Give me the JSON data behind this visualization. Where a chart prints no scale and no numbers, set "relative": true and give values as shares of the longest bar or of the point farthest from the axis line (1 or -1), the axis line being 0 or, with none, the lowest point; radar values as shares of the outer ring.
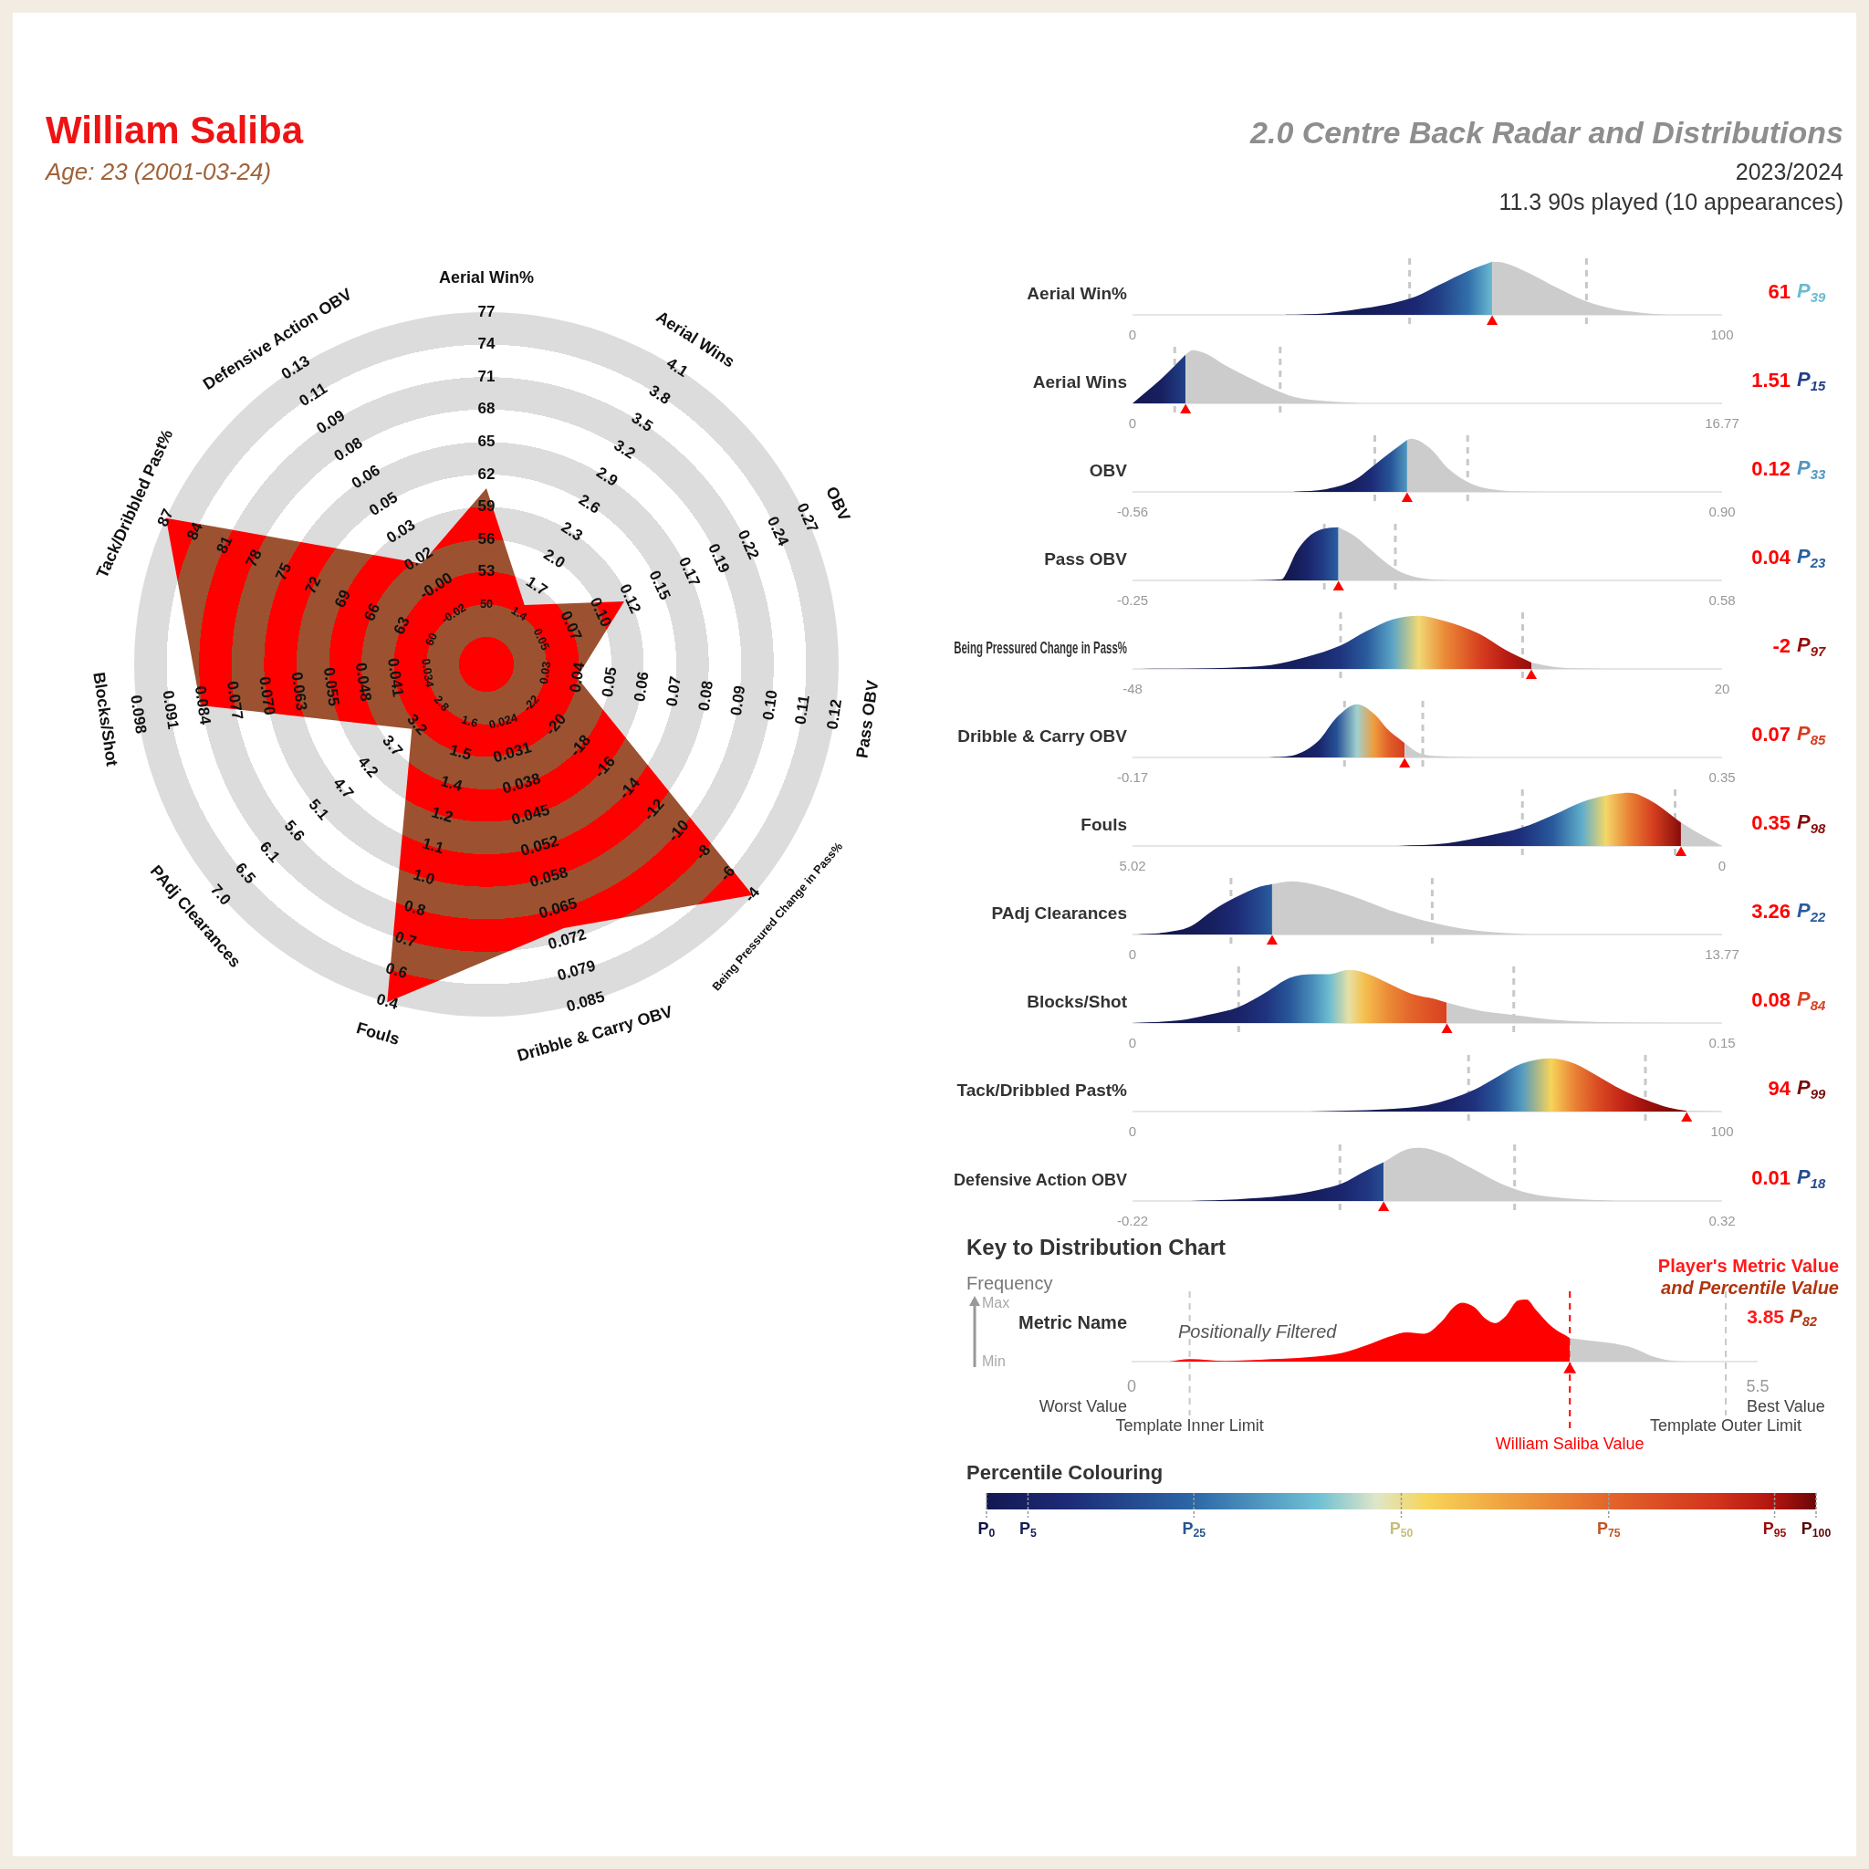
{
  "chart_data": [
    {
      "type": "radar",
      "title": "William Saliba",
      "subtitle": "Age: 23 (2001-03-24)",
      "relative": true,
      "grid": true,
      "categories": [
        "Aerial Win%",
        "Aerial Wins",
        "OBV",
        "Pass OBV",
        "Being Pressured Change in Pass%",
        "Dribble & Carry OBV",
        "Fouls",
        "PAdj Clearances",
        "Blocks/Shot",
        "Tack/Dribbled Past%",
        "Defensive Action OBV"
      ],
      "series": [
        {
          "color": "#ff0000",
          "values": [
            0.5,
            0.2,
            0.43,
            0.26,
            1,
            0.78,
            1,
            0.28,
            0.82,
            1,
            0.34
          ]
        }
      ],
      "annotations": [
        "50",
        "53",
        "56",
        "59",
        "62",
        "65",
        "68",
        "71",
        "74",
        "77",
        "1.4",
        "1.7",
        "2.0",
        "2.3",
        "2.6",
        "2.9",
        "3.2",
        "3.5",
        "3.8",
        "4.1",
        "0.05",
        "0.07",
        "0.10",
        "0.12",
        "0.15",
        "0.17",
        "0.19",
        "0.22",
        "0.24",
        "0.27",
        "0.03",
        "0.04",
        "0.05",
        "0.06",
        "0.07",
        "0.08",
        "0.09",
        "0.10",
        "0.11",
        "0.12",
        "-22",
        "-20",
        "-18",
        "-16",
        "-14",
        "-12",
        "-10",
        "-8",
        "-6",
        "-4",
        "0.024",
        "0.031",
        "0.038",
        "0.045",
        "0.052",
        "0.058",
        "0.065",
        "0.072",
        "0.079",
        "0.085",
        "1.6",
        "1.5",
        "1.4",
        "1.2",
        "1.1",
        "1.0",
        "0.8",
        "0.7",
        "0.6",
        "0.4",
        "2.8",
        "3.2",
        "3.7",
        "4.2",
        "4.7",
        "5.1",
        "5.6",
        "6.1",
        "6.5",
        "7.0",
        "0.034",
        "0.041",
        "0.048",
        "0.055",
        "0.063",
        "0.070",
        "0.077",
        "0.084",
        "0.091",
        "0.098",
        "60",
        "63",
        "66",
        "69",
        "72",
        "75",
        "78",
        "81",
        "84",
        "87",
        "-0.02",
        "-0.00",
        "0.02",
        "0.03",
        "0.05",
        "0.06",
        "0.08",
        "0.09",
        "0.11",
        "0.13"
      ]
    },
    {
      "type": "other",
      "title": "2.0 Centre Back Radar and Distributions",
      "annotations": [
        "2023/2024",
        "11.3 90s played (10 appearances)"
      ]
    },
    {
      "type": "area",
      "relative": true,
      "title": "Aerial Win%",
      "xlim": [
        0,
        100
      ],
      "xticks": [
        0,
        100
      ],
      "series": [
        {
          "color": "#6abad1",
          "x": [
            26,
            33,
            38,
            43,
            48,
            52,
            57,
            61
          ],
          "values": [
            0,
            0.03,
            0.1,
            0.19,
            0.34,
            0.56,
            0.83,
            1
          ]
        },
        {
          "color": "#cccccc",
          "x": [
            61,
            63,
            67,
            72,
            77,
            82,
            87,
            91
          ],
          "values": [
            1,
            0.98,
            0.8,
            0.51,
            0.25,
            0.1,
            0.03,
            0
          ]
        },
        {
          "type": "scatter",
          "color": "#ff0000",
          "marker": "triangle",
          "x": [
            61
          ],
          "values": [
            -0.13
          ]
        }
      ],
      "ref_lines": [
        {
          "axis": "x",
          "value": 47,
          "color": "#c8c8c8",
          "line_style": "dashed"
        },
        {
          "axis": "x",
          "value": 77,
          "color": "#c8c8c8",
          "line_style": "dashed"
        }
      ],
      "annotations": [
        "61",
        "P$_{39}$"
      ]
    },
    {
      "type": "area",
      "relative": true,
      "title": "Aerial Wins",
      "xlim": [
        0,
        16.77
      ],
      "xticks": [
        0,
        16.77
      ],
      "series": [
        {
          "color": "#223f88",
          "x": [
            0,
            0.8,
            1.51
          ],
          "values": [
            0,
            0.45,
            0.92
          ]
        },
        {
          "color": "#cccccc",
          "x": [
            1.51,
            1.7,
            2.1,
            2.6,
            3.3,
            4,
            4.6,
            5.5,
            6.5
          ],
          "values": [
            0.92,
            1,
            0.93,
            0.73,
            0.49,
            0.27,
            0.12,
            0.04,
            0
          ]
        },
        {
          "type": "scatter",
          "color": "#ff0000",
          "marker": "triangle",
          "x": [
            1.51
          ],
          "values": [
            -0.13
          ]
        }
      ],
      "ref_lines": [
        {
          "axis": "x",
          "value": 1.2,
          "color": "#c8c8c8",
          "line_style": "dashed"
        },
        {
          "axis": "x",
          "value": 4.2,
          "color": "#c8c8c8",
          "line_style": "dashed"
        }
      ],
      "annotations": [
        "1.51",
        "P$_{15}$"
      ]
    },
    {
      "type": "area",
      "relative": true,
      "title": "OBV",
      "xlim": [
        -0.56,
        0.9
      ],
      "xticks": [
        -0.56,
        {
          "value": 0.9,
          "label": "0.90"
        }
      ],
      "series": [
        {
          "color": "#5097bf",
          "x": [
            -0.16,
            -0.08,
            -0.01,
            0.03,
            0.08,
            0.12
          ],
          "values": [
            0,
            0.05,
            0.22,
            0.45,
            0.75,
            0.98
          ]
        },
        {
          "color": "#cccccc",
          "x": [
            0.12,
            0.13,
            0.18,
            0.22,
            0.28,
            0.35,
            0.45
          ],
          "values": [
            0.98,
            1,
            0.8,
            0.45,
            0.15,
            0.03,
            0
          ]
        },
        {
          "type": "scatter",
          "color": "#ff0000",
          "marker": "triangle",
          "x": [
            0.12
          ],
          "values": [
            -0.13
          ]
        }
      ],
      "ref_lines": [
        {
          "axis": "x",
          "value": 0.04,
          "color": "#c8c8c8",
          "line_style": "dashed"
        },
        {
          "axis": "x",
          "value": 0.27,
          "color": "#c8c8c8",
          "line_style": "dashed"
        }
      ],
      "annotations": [
        "0.12",
        "P$_{33}$"
      ]
    },
    {
      "type": "area",
      "relative": true,
      "title": "Pass OBV",
      "xlim": [
        -0.25,
        0.58
      ],
      "xticks": [
        -0.25,
        0.58
      ],
      "series": [
        {
          "color": "#2a60a1",
          "x": [
            -0.1,
            -0.04,
            -0.033,
            -0.02,
            -0.004,
            0.016,
            0.04
          ],
          "values": [
            0,
            0.02,
            0.15,
            0.52,
            0.8,
            0.96,
            1
          ]
        },
        {
          "color": "#cccccc",
          "x": [
            0.04,
            0.062,
            0.086,
            0.111,
            0.136,
            0.169,
            0.2
          ],
          "values": [
            1,
            0.84,
            0.57,
            0.29,
            0.11,
            0.02,
            0
          ]
        },
        {
          "type": "scatter",
          "color": "#ff0000",
          "marker": "triangle",
          "x": [
            0.04
          ],
          "values": [
            -0.13
          ]
        }
      ],
      "ref_lines": [
        {
          "axis": "x",
          "value": 0.02,
          "color": "#c8c8c8",
          "line_style": "dashed"
        },
        {
          "axis": "x",
          "value": 0.12,
          "color": "#c8c8c8",
          "line_style": "dashed"
        }
      ],
      "annotations": [
        "0.04",
        "P$_{23}$"
      ]
    },
    {
      "type": "area",
      "relative": true,
      "title": "Being Pressured Change in Pass%",
      "xlim": [
        -48,
        20
      ],
      "xticks": [
        -48,
        20
      ],
      "series": [
        {
          "color": "#940f0c",
          "x": [
            -47,
            -37,
            -32,
            -28,
            -24,
            -21,
            -18,
            -15,
            -12,
            -8,
            -5,
            -2
          ],
          "values": [
            0,
            0.02,
            0.07,
            0.22,
            0.44,
            0.71,
            0.93,
            1,
            0.9,
            0.66,
            0.36,
            0.12
          ]
        },
        {
          "color": "#cccccc",
          "x": [
            -2,
            1,
            7
          ],
          "values": [
            0.12,
            0.03,
            0
          ]
        },
        {
          "type": "scatter",
          "color": "#ff0000",
          "marker": "triangle",
          "x": [
            -2
          ],
          "values": [
            -0.13
          ]
        }
      ],
      "ref_lines": [
        {
          "axis": "x",
          "value": -24,
          "color": "#c8c8c8",
          "line_style": "dashed"
        },
        {
          "axis": "x",
          "value": -3,
          "color": "#c8c8c8",
          "line_style": "dashed"
        }
      ],
      "annotations": [
        "-2",
        "P$_{97}$"
      ]
    },
    {
      "type": "area",
      "relative": true,
      "title": "Dribble & Carry OBV",
      "xlim": [
        -0.17,
        0.35
      ],
      "xticks": [
        -0.17,
        0.35
      ],
      "series": [
        {
          "color": "#d63e1f",
          "x": [
            -0.05,
            -0.026,
            -0.006,
            0.01,
            0.028,
            0.043,
            0.056,
            0.07
          ],
          "values": [
            0,
            0.05,
            0.31,
            0.75,
            1,
            0.82,
            0.51,
            0.27
          ]
        },
        {
          "color": "#cccccc",
          "x": [
            0.07,
            0.082,
            0.103,
            0.134
          ],
          "values": [
            0.27,
            0.09,
            0.02,
            0
          ]
        },
        {
          "type": "scatter",
          "color": "#ff0000",
          "marker": "triangle",
          "x": [
            0.07
          ],
          "values": [
            -0.13
          ]
        }
      ],
      "ref_lines": [
        {
          "axis": "x",
          "value": 0.017,
          "color": "#c8c8c8",
          "line_style": "dashed"
        },
        {
          "axis": "x",
          "value": 0.086,
          "color": "#c8c8c8",
          "line_style": "dashed"
        }
      ],
      "annotations": [
        "0.07",
        "P$_{85}$"
      ]
    },
    {
      "type": "area",
      "relative": true,
      "title": "Fouls",
      "xlim": [
        5.02,
        0
      ],
      "xticks": [
        5.02,
        0
      ],
      "series": [
        {
          "color": "#870c0a",
          "x": [
            2.76,
            2.34,
            1.99,
            1.71,
            1.44,
            1.19,
            0.99,
            0.79,
            0.59,
            0.35
          ],
          "values": [
            0,
            0.05,
            0.19,
            0.34,
            0.58,
            0.83,
            0.95,
            1,
            0.83,
            0.44
          ]
        },
        {
          "color": "#cccccc",
          "x": [
            0.35,
            0.2,
            0
          ],
          "values": [
            0.44,
            0.24,
            0
          ]
        },
        {
          "type": "scatter",
          "color": "#ff0000",
          "marker": "triangle",
          "x": [
            0.35
          ],
          "values": [
            -0.13
          ]
        }
      ],
      "ref_lines": [
        {
          "axis": "x",
          "value": 1.7,
          "color": "#c8c8c8",
          "line_style": "dashed"
        },
        {
          "axis": "x",
          "value": 0.4,
          "color": "#c8c8c8",
          "line_style": "dashed"
        }
      ],
      "annotations": [
        "0.35",
        "P$_{98}$"
      ]
    },
    {
      "type": "area",
      "relative": true,
      "title": "PAdj Clearances",
      "xlim": [
        0,
        13.77
      ],
      "xticks": [
        0,
        13.77
      ],
      "series": [
        {
          "color": "#295c9e",
          "x": [
            0.1,
            0.8,
            1.35,
            1.89,
            2.44,
            2.98,
            3.26
          ],
          "values": [
            0,
            0.04,
            0.15,
            0.46,
            0.71,
            0.9,
            0.95
          ]
        },
        {
          "color": "#cccccc",
          "x": [
            3.26,
            3.74,
            4.35,
            5.17,
            5.99,
            6.81,
            7.63,
            8.45,
            9.27
          ],
          "values": [
            0.95,
            1,
            0.92,
            0.71,
            0.46,
            0.26,
            0.12,
            0.04,
            0
          ]
        },
        {
          "type": "scatter",
          "color": "#ff0000",
          "marker": "triangle",
          "x": [
            3.26
          ],
          "values": [
            -0.13
          ]
        }
      ],
      "ref_lines": [
        {
          "axis": "x",
          "value": 2.3,
          "color": "#c8c8c8",
          "line_style": "dashed"
        },
        {
          "axis": "x",
          "value": 7,
          "color": "#c8c8c8",
          "line_style": "dashed"
        }
      ],
      "annotations": [
        "3.26",
        "P$_{22}$"
      ]
    },
    {
      "type": "area",
      "relative": true,
      "title": "Blocks/Shot",
      "xlim": [
        0,
        0.15
      ],
      "xticks": [
        0,
        0.15
      ],
      "series": [
        {
          "color": "#d74221",
          "x": [
            0,
            0.012,
            0.019,
            0.027,
            0.034,
            0.04,
            0.046,
            0.05,
            0.055,
            0.059,
            0.065,
            0.071,
            0.077,
            0.08
          ],
          "values": [
            0,
            0.05,
            0.15,
            0.3,
            0.58,
            0.85,
            0.92,
            0.92,
            1,
            0.95,
            0.75,
            0.55,
            0.45,
            0.38
          ]
        },
        {
          "color": "#cccccc",
          "x": [
            0.08,
            0.089,
            0.097,
            0.109,
            0.123,
            0.141
          ],
          "values": [
            0.38,
            0.22,
            0.15,
            0.05,
            0.01,
            0
          ]
        },
        {
          "type": "scatter",
          "color": "#ff0000",
          "marker": "triangle",
          "x": [
            0.08
          ],
          "values": [
            -0.13
          ]
        }
      ],
      "ref_lines": [
        {
          "axis": "x",
          "value": 0.027,
          "color": "#c8c8c8",
          "line_style": "dashed"
        },
        {
          "axis": "x",
          "value": 0.097,
          "color": "#c8c8c8",
          "line_style": "dashed"
        }
      ],
      "annotations": [
        "0.08",
        "P$_{84}$"
      ]
    },
    {
      "type": "area",
      "relative": true,
      "title": "Tack/Dribbled Past%",
      "xlim": [
        0,
        100
      ],
      "xticks": [
        0,
        100
      ],
      "series": [
        {
          "color": "#790a09",
          "x": [
            30,
            43,
            50,
            54,
            58,
            62,
            66,
            71,
            75,
            79,
            83,
            87,
            91,
            94
          ],
          "values": [
            0,
            0.04,
            0.12,
            0.24,
            0.41,
            0.66,
            0.9,
            1,
            0.9,
            0.66,
            0.41,
            0.22,
            0.07,
            0.01
          ]
        },
        {
          "color": "#cccccc",
          "x": [
            94,
            100
          ],
          "values": [
            0.01,
            0
          ]
        },
        {
          "type": "scatter",
          "color": "#ff0000",
          "marker": "triangle",
          "x": [
            94
          ],
          "values": [
            -0.13
          ]
        }
      ],
      "ref_lines": [
        {
          "axis": "x",
          "value": 57,
          "color": "#c8c8c8",
          "line_style": "dashed"
        },
        {
          "axis": "x",
          "value": 87,
          "color": "#c8c8c8",
          "line_style": "dashed"
        }
      ],
      "annotations": [
        "94",
        "P$_{99}$"
      ]
    },
    {
      "type": "area",
      "relative": true,
      "title": "Defensive Action OBV",
      "xlim": [
        -0.22,
        0.32
      ],
      "xticks": [
        -0.22,
        0.32
      ],
      "series": [
        {
          "color": "#254c91",
          "x": [
            -0.167,
            -0.124,
            -0.081,
            -0.049,
            -0.028,
            -0.006,
            0.01
          ],
          "values": [
            0,
            0.03,
            0.1,
            0.21,
            0.33,
            0.57,
            0.73
          ]
        },
        {
          "color": "#cccccc",
          "x": [
            0.01,
            0.031,
            0.044,
            0.063,
            0.09,
            0.117,
            0.144,
            0.176,
            0.224
          ],
          "values": [
            0.73,
            0.97,
            1,
            0.9,
            0.62,
            0.33,
            0.14,
            0.05,
            0
          ]
        },
        {
          "type": "scatter",
          "color": "#ff0000",
          "marker": "triangle",
          "x": [
            0.01
          ],
          "values": [
            -0.13
          ]
        }
      ],
      "ref_lines": [
        {
          "axis": "x",
          "value": -0.03,
          "color": "#c8c8c8",
          "line_style": "dashed"
        },
        {
          "axis": "x",
          "value": 0.13,
          "color": "#c8c8c8",
          "line_style": "dashed"
        }
      ],
      "annotations": [
        "0.01",
        "P$_{18}$"
      ]
    },
    {
      "type": "area",
      "relative": true,
      "title": "Key to Distribution Chart",
      "ylabel": "Metric Name",
      "xlim": [
        0,
        5.5
      ],
      "xticks": [
        0,
        5.5
      ],
      "series": [
        {
          "color": "#ff0000",
          "x": [
            0.33,
            0.51,
            0.82,
            1.23,
            1.54,
            1.85,
            2.06,
            2.26,
            2.42,
            2.57,
            2.72,
            2.83,
            2.9,
            3.01,
            3.11,
            3.19,
            3.29,
            3.39,
            3.47,
            3.55,
            3.7,
            3.85
          ],
          "values": [
            0,
            0.04,
            0.01,
            0.04,
            0.07,
            0.14,
            0.26,
            0.4,
            0.47,
            0.45,
            0.64,
            0.88,
            0.95,
            0.88,
            0.69,
            0.62,
            0.74,
            0.98,
            1,
            0.84,
            0.55,
            0.38
          ]
        },
        {
          "color": "#cccccc",
          "x": [
            3.85,
            4.06,
            4.27,
            4.42,
            4.57,
            4.73,
            4.88
          ],
          "values": [
            0.38,
            0.33,
            0.28,
            0.21,
            0.09,
            0.02,
            0
          ]
        },
        {
          "type": "scatter",
          "color": "#ff0000",
          "marker": "triangle",
          "x": [
            3.85
          ],
          "values": [
            -0.13
          ]
        }
      ],
      "ref_lines": [
        {
          "axis": "x",
          "value": 0.51,
          "label": "Template Inner Limit",
          "color": "#c8c8c8",
          "line_style": "dashed"
        },
        {
          "axis": "x",
          "value": 5.22,
          "label": "Template Outer Limit",
          "color": "#c8c8c8",
          "line_style": "dashed"
        },
        {
          "axis": "x",
          "value": 3.85,
          "label": "William Saliba Value",
          "color": "#ff0000",
          "line_style": "dashed"
        }
      ],
      "annotations": [
        "Frequency",
        "Max",
        "Min",
        "Positionally Filtered",
        "Worst Value",
        "Best Value",
        "Player's Metric Value",
        "and Percentile Value",
        "3.85",
        "P$_{82}$"
      ],
      "clabel": "Percentile Colouring",
      "clim": [
        0,
        100
      ],
      "cticks": [
        {
          "value": 0,
          "label": "P$_{0}$"
        },
        {
          "value": 5,
          "label": "P$_{5}$"
        },
        {
          "value": 25,
          "label": "P$_{25}$"
        },
        {
          "value": 50,
          "label": "P$_{50}$"
        },
        {
          "value": 75,
          "label": "P$_{75}$"
        },
        {
          "value": 95,
          "label": "P$_{95}$"
        },
        {
          "value": 100,
          "label": "P$_{100}$"
        }
      ]
    }
  ]
}
